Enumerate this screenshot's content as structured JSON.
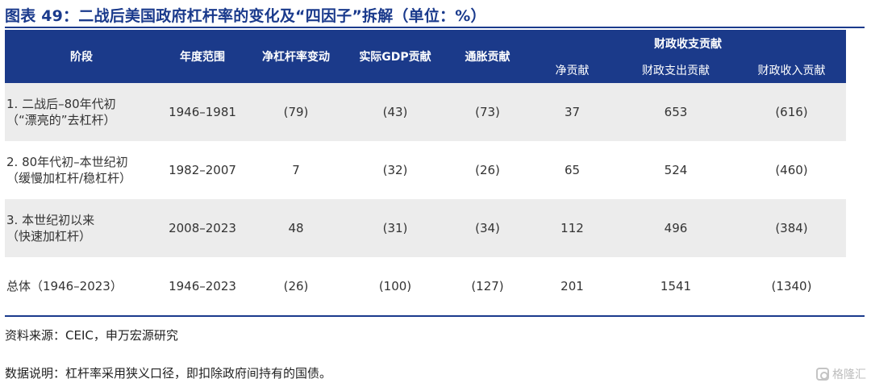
{
  "title": "图表 49：二战后美国政府杠杆率的变化及“四因子”拆解（单位：%）",
  "table": {
    "headers": {
      "stage": "阶段",
      "years": "年度范围",
      "net_leverage_change": "净杠杆率变动",
      "real_gdp": "实际GDP贡献",
      "inflation": "通胀贡献",
      "fiscal_group": "财政收支贡献",
      "fiscal_net": "净贡献",
      "fiscal_spending": "财政支出贡献",
      "fiscal_revenue": "财政收入贡献"
    },
    "rows": [
      {
        "stage_line1": "1. 二战后–80年代初",
        "stage_line2": "（“漂亮的”去杠杆）",
        "years": "1946–1981",
        "net_leverage_change": "(79)",
        "real_gdp": "(43)",
        "inflation": "(73)",
        "fiscal_net": "37",
        "fiscal_spending": "653",
        "fiscal_revenue": "(616)"
      },
      {
        "stage_line1": "2. 80年代初–本世纪初",
        "stage_line2": "（缓慢加杠杆/稳杠杆）",
        "years": "1982–2007",
        "net_leverage_change": "7",
        "real_gdp": "(32)",
        "inflation": "(26)",
        "fiscal_net": "65",
        "fiscal_spending": "524",
        "fiscal_revenue": "(460)"
      },
      {
        "stage_line1": "3. 本世纪初以来",
        "stage_line2": "（快速加杠杆）",
        "years": "2008–2023",
        "net_leverage_change": "48",
        "real_gdp": "(31)",
        "inflation": "(34)",
        "fiscal_net": "112",
        "fiscal_spending": "496",
        "fiscal_revenue": "(384)"
      },
      {
        "stage_line1": "总体（1946–2023）",
        "stage_line2": "",
        "years": "1946–2023",
        "net_leverage_change": "(26)",
        "real_gdp": "(100)",
        "inflation": "(127)",
        "fiscal_net": "201",
        "fiscal_spending": "1541",
        "fiscal_revenue": "(1340)"
      }
    ]
  },
  "source": "资料来源：CEIC，申万宏源研究",
  "note": "数据说明：杠杆率采用狭义口径，即扣除政府间持有的国债。",
  "watermark": "格隆汇",
  "colors": {
    "header_bg": "#1b3a8a",
    "title": "#1a3a8c",
    "negative": "#b0202a",
    "row_shade": "#ececec"
  }
}
